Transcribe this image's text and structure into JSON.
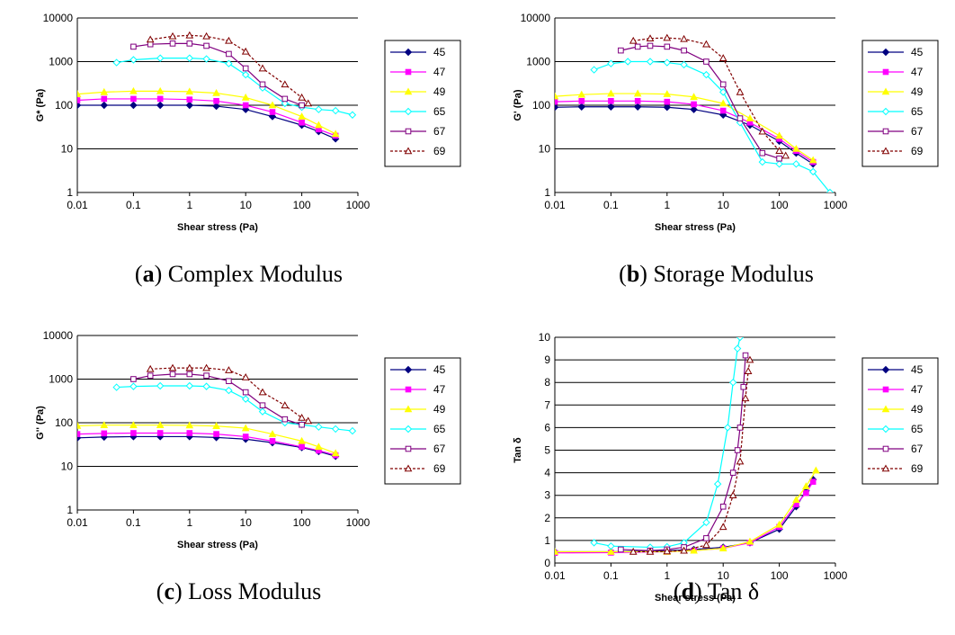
{
  "series_style": [
    {
      "name": "45",
      "color": "#000080",
      "marker": "diamond",
      "fill": true,
      "dash": false
    },
    {
      "name": "47",
      "color": "#FF00FF",
      "marker": "square",
      "fill": true,
      "dash": false
    },
    {
      "name": "49",
      "color": "#FFFF00",
      "marker": "triangle",
      "fill": true,
      "dash": false
    },
    {
      "name": "65",
      "color": "#00FFFF",
      "marker": "diamond",
      "fill": false,
      "dash": false
    },
    {
      "name": "67",
      "color": "#800080",
      "marker": "square",
      "fill": false,
      "dash": false
    },
    {
      "name": "69",
      "color": "#800000",
      "marker": "triangle",
      "fill": false,
      "dash": true
    }
  ],
  "panels": [
    {
      "letter": "a",
      "caption_text": " Complex Modulus"
    },
    {
      "letter": "b",
      "caption_text": " Storage Modulus"
    },
    {
      "letter": "c",
      "caption_text": " Loss Modulus"
    },
    {
      "letter": "d",
      "caption_text": " Tan δ"
    }
  ],
  "chart_data": [
    {
      "type": "line",
      "xlabel": "Shear stress (Pa)",
      "ylabel": "G* (Pa)",
      "x_scale": "log",
      "xlim": [
        0.01,
        1000
      ],
      "y_scale": "log",
      "ylim": [
        1,
        10000
      ],
      "x_ticks": [
        "0.01",
        "0.1",
        "1",
        "10",
        "100",
        "1000"
      ],
      "y_ticks": [
        "1",
        "10",
        "100",
        "1000",
        "10000"
      ],
      "grid": "horizontal",
      "legend": "right",
      "series": [
        {
          "name": "45",
          "x": [
            0.01,
            0.03,
            0.1,
            0.3,
            1,
            3,
            10,
            30,
            100,
            200,
            400
          ],
          "y": [
            100,
            100,
            100,
            100,
            100,
            95,
            80,
            55,
            35,
            25,
            17
          ]
        },
        {
          "name": "47",
          "x": [
            0.01,
            0.03,
            0.1,
            0.3,
            1,
            3,
            10,
            30,
            100,
            200,
            400
          ],
          "y": [
            130,
            140,
            140,
            140,
            135,
            125,
            100,
            70,
            40,
            28,
            20
          ]
        },
        {
          "name": "49",
          "x": [
            0.01,
            0.03,
            0.1,
            0.3,
            1,
            3,
            10,
            30,
            100,
            200,
            400
          ],
          "y": [
            180,
            200,
            210,
            210,
            205,
            190,
            150,
            100,
            55,
            35,
            22
          ]
        },
        {
          "name": "65",
          "x": [
            0.05,
            0.1,
            0.3,
            1,
            2,
            5,
            10,
            20,
            50,
            100,
            200,
            400,
            800
          ],
          "y": [
            950,
            1100,
            1200,
            1200,
            1150,
            900,
            500,
            250,
            110,
            90,
            80,
            75,
            60
          ]
        },
        {
          "name": "67",
          "x": [
            0.1,
            0.2,
            0.5,
            1,
            2,
            5,
            10,
            20,
            50,
            100
          ],
          "y": [
            2200,
            2500,
            2600,
            2600,
            2300,
            1500,
            700,
            300,
            140,
            100
          ]
        },
        {
          "name": "69",
          "x": [
            0.2,
            0.5,
            1,
            2,
            5,
            10,
            20,
            50,
            100,
            130
          ],
          "y": [
            3200,
            3800,
            4000,
            3800,
            3000,
            1700,
            700,
            300,
            150,
            110
          ]
        }
      ]
    },
    {
      "type": "line",
      "xlabel": "Shear stress (Pa)",
      "ylabel": "G' (Pa)",
      "x_scale": "log",
      "xlim": [
        0.01,
        1000
      ],
      "y_scale": "log",
      "ylim": [
        1,
        10000
      ],
      "x_ticks": [
        "0.01",
        "0.1",
        "1",
        "10",
        "100",
        "1000"
      ],
      "y_ticks": [
        "1",
        "10",
        "100",
        "1000",
        "10000"
      ],
      "grid": "horizontal",
      "legend": "right",
      "series": [
        {
          "name": "45",
          "x": [
            0.01,
            0.03,
            0.1,
            0.3,
            1,
            3,
            10,
            30,
            100,
            200,
            400
          ],
          "y": [
            90,
            92,
            92,
            92,
            90,
            80,
            60,
            35,
            15,
            8,
            4.5
          ]
        },
        {
          "name": "47",
          "x": [
            0.01,
            0.03,
            0.1,
            0.3,
            1,
            3,
            10,
            30,
            100,
            200,
            400
          ],
          "y": [
            120,
            125,
            125,
            125,
            120,
            105,
            75,
            40,
            17,
            9,
            5
          ]
        },
        {
          "name": "49",
          "x": [
            0.01,
            0.03,
            0.1,
            0.3,
            1,
            3,
            10,
            30,
            100,
            200,
            400
          ],
          "y": [
            160,
            175,
            185,
            185,
            180,
            155,
            110,
            50,
            20,
            10,
            5.5
          ]
        },
        {
          "name": "65",
          "x": [
            0.05,
            0.1,
            0.2,
            0.5,
            1,
            2,
            5,
            10,
            20,
            50,
            100,
            200,
            400,
            800
          ],
          "y": [
            650,
            900,
            1000,
            1000,
            950,
            850,
            500,
            200,
            40,
            5,
            4.5,
            4.5,
            3,
            1
          ]
        },
        {
          "name": "67",
          "x": [
            0.15,
            0.3,
            0.5,
            1,
            2,
            5,
            10,
            20,
            50,
            100
          ],
          "y": [
            1800,
            2200,
            2300,
            2200,
            1800,
            1000,
            300,
            50,
            8,
            6
          ]
        },
        {
          "name": "69",
          "x": [
            0.25,
            0.5,
            1,
            2,
            5,
            10,
            20,
            50,
            100,
            130
          ],
          "y": [
            3000,
            3400,
            3500,
            3300,
            2500,
            1200,
            200,
            25,
            9,
            7
          ]
        }
      ]
    },
    {
      "type": "line",
      "xlabel": "Shear stress (Pa)",
      "ylabel": "G'' (Pa)",
      "x_scale": "log",
      "xlim": [
        0.01,
        1000
      ],
      "y_scale": "log",
      "ylim": [
        1,
        10000
      ],
      "x_ticks": [
        "0.01",
        "0.1",
        "1",
        "10",
        "100",
        "1000"
      ],
      "y_ticks": [
        "1",
        "10",
        "100",
        "1000",
        "10000"
      ],
      "grid": "horizontal",
      "legend": "right",
      "series": [
        {
          "name": "45",
          "x": [
            0.01,
            0.03,
            0.1,
            0.3,
            1,
            3,
            10,
            30,
            100,
            200,
            400
          ],
          "y": [
            45,
            47,
            48,
            48,
            48,
            46,
            42,
            35,
            27,
            22,
            17
          ]
        },
        {
          "name": "47",
          "x": [
            0.01,
            0.03,
            0.1,
            0.3,
            1,
            3,
            10,
            30,
            100,
            200,
            400
          ],
          "y": [
            55,
            57,
            58,
            58,
            58,
            55,
            48,
            38,
            28,
            23,
            18
          ]
        },
        {
          "name": "49",
          "x": [
            0.01,
            0.03,
            0.1,
            0.3,
            1,
            3,
            10,
            30,
            100,
            200,
            400
          ],
          "y": [
            85,
            88,
            88,
            88,
            87,
            84,
            75,
            55,
            38,
            28,
            20
          ]
        },
        {
          "name": "65",
          "x": [
            0.05,
            0.1,
            0.3,
            1,
            2,
            5,
            10,
            20,
            50,
            100,
            200,
            400,
            800
          ],
          "y": [
            650,
            680,
            700,
            700,
            680,
            550,
            350,
            180,
            100,
            90,
            80,
            72,
            65
          ]
        },
        {
          "name": "67",
          "x": [
            0.1,
            0.2,
            0.5,
            1,
            2,
            5,
            10,
            20,
            50,
            100
          ],
          "y": [
            1000,
            1200,
            1300,
            1300,
            1200,
            900,
            500,
            250,
            120,
            90
          ]
        },
        {
          "name": "69",
          "x": [
            0.2,
            0.5,
            1,
            2,
            5,
            10,
            20,
            50,
            100,
            130
          ],
          "y": [
            1700,
            1800,
            1800,
            1800,
            1600,
            1100,
            500,
            250,
            130,
            110
          ]
        }
      ]
    },
    {
      "type": "line",
      "xlabel": "Shear stress (Pa)",
      "ylabel": "Tan δ",
      "x_scale": "log",
      "xlim": [
        0.01,
        1000
      ],
      "y_scale": "linear",
      "ylim": [
        0,
        10
      ],
      "x_ticks": [
        "0.01",
        "0.1",
        "1",
        "10",
        "100",
        "1000"
      ],
      "y_ticks": [
        "0",
        "1",
        "2",
        "3",
        "4",
        "5",
        "6",
        "7",
        "8",
        "9",
        "10"
      ],
      "grid": "horizontal",
      "legend": "right",
      "series": [
        {
          "name": "45",
          "x": [
            0.01,
            0.1,
            1,
            3,
            10,
            30,
            100,
            200,
            300,
            400
          ],
          "y": [
            0.5,
            0.5,
            0.55,
            0.6,
            0.7,
            0.9,
            1.5,
            2.5,
            3.2,
            3.7
          ]
        },
        {
          "name": "47",
          "x": [
            0.01,
            0.1,
            1,
            3,
            10,
            30,
            100,
            200,
            300,
            400
          ],
          "y": [
            0.45,
            0.46,
            0.5,
            0.55,
            0.65,
            0.9,
            1.6,
            2.6,
            3.1,
            3.6
          ]
        },
        {
          "name": "49",
          "x": [
            0.01,
            0.1,
            1,
            3,
            10,
            30,
            100,
            200,
            300,
            450
          ],
          "y": [
            0.5,
            0.5,
            0.5,
            0.55,
            0.65,
            0.95,
            1.7,
            2.8,
            3.4,
            4.1
          ]
        },
        {
          "name": "65",
          "x": [
            0.05,
            0.1,
            0.5,
            1,
            2,
            5,
            8,
            12,
            15,
            18,
            20
          ],
          "y": [
            0.9,
            0.75,
            0.7,
            0.72,
            0.9,
            1.8,
            3.5,
            6,
            8,
            9.5,
            10
          ]
        },
        {
          "name": "67",
          "x": [
            0.15,
            0.5,
            1,
            2,
            5,
            10,
            15,
            18,
            20,
            23,
            25
          ],
          "y": [
            0.6,
            0.55,
            0.6,
            0.7,
            1.1,
            2.5,
            4,
            5,
            6,
            7.8,
            9.2
          ]
        },
        {
          "name": "69",
          "x": [
            0.25,
            0.5,
            1,
            2,
            5,
            10,
            15,
            20,
            25,
            28,
            30
          ],
          "y": [
            0.5,
            0.5,
            0.52,
            0.55,
            0.8,
            1.6,
            3,
            4.5,
            7.3,
            8.5,
            9
          ]
        }
      ]
    }
  ]
}
